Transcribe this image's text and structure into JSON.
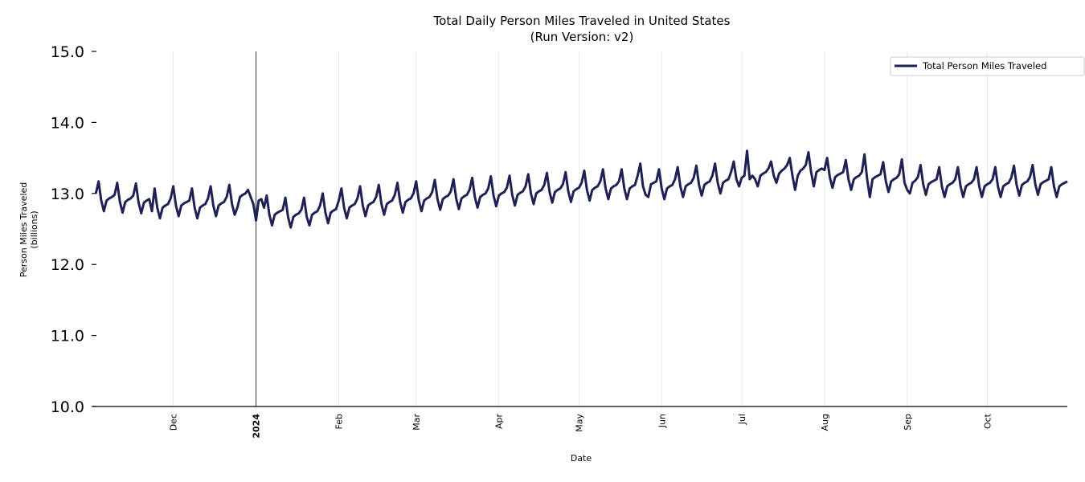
{
  "chart_data": {
    "type": "line",
    "title": "Total Daily Person Miles Traveled in United States",
    "subtitle": "(Run Version: v2)",
    "xlabel": "Date",
    "ylabel": "Person Miles Traveled",
    "ylabel_unit": "(billions)",
    "ylim": [
      10.0,
      15.0
    ],
    "yticks": [
      "10.0",
      "11.0",
      "12.0",
      "13.0",
      "14.0",
      "15.0"
    ],
    "xlim": [
      "2023-11-01",
      "2024-10-31"
    ],
    "xticks": [
      {
        "date": "2023-12-01",
        "label": "Dec",
        "bold": false
      },
      {
        "date": "2024-01-01",
        "label": "2024",
        "bold": true
      },
      {
        "date": "2024-02-01",
        "label": "Feb",
        "bold": false
      },
      {
        "date": "2024-03-01",
        "label": "Mar",
        "bold": false
      },
      {
        "date": "2024-04-01",
        "label": "Apr",
        "bold": false
      },
      {
        "date": "2024-05-01",
        "label": "May",
        "bold": false
      },
      {
        "date": "2024-06-01",
        "label": "Jun",
        "bold": false
      },
      {
        "date": "2024-07-01",
        "label": "Jul",
        "bold": false
      },
      {
        "date": "2024-08-01",
        "label": "Aug",
        "bold": false
      },
      {
        "date": "2024-09-01",
        "label": "Sep",
        "bold": false
      },
      {
        "date": "2024-10-01",
        "label": "Oct",
        "bold": false
      }
    ],
    "grid": "vertical at month starts",
    "highlight_line": "2024-01-01",
    "legend": {
      "position": "top-right"
    },
    "series": [
      {
        "name": "Total Person Miles Traveled",
        "color": "#1f2155",
        "x_start": "2023-11-02",
        "x_frequency": "daily",
        "values": [
          13.0,
          13.17,
          12.9,
          12.75,
          12.9,
          12.93,
          12.95,
          12.98,
          13.15,
          12.88,
          12.73,
          12.88,
          12.91,
          12.93,
          12.97,
          13.14,
          12.87,
          12.72,
          12.87,
          12.9,
          12.92,
          12.75,
          13.07,
          12.8,
          12.65,
          12.8,
          12.83,
          12.85,
          12.93,
          13.1,
          12.83,
          12.68,
          12.83,
          12.86,
          12.88,
          12.9,
          13.07,
          12.8,
          12.65,
          12.8,
          12.83,
          12.85,
          12.93,
          13.1,
          12.83,
          12.68,
          12.83,
          12.86,
          12.88,
          12.95,
          13.12,
          12.85,
          12.7,
          12.8,
          12.95,
          12.98,
          13.0,
          13.05,
          12.95,
          12.85,
          12.62,
          12.9,
          12.92,
          12.8,
          12.97,
          12.7,
          12.55,
          12.7,
          12.73,
          12.75,
          12.77,
          12.94,
          12.67,
          12.52,
          12.67,
          12.7,
          12.72,
          12.77,
          12.94,
          12.67,
          12.55,
          12.7,
          12.73,
          12.75,
          12.83,
          13.0,
          12.73,
          12.58,
          12.73,
          12.76,
          12.78,
          12.9,
          13.07,
          12.8,
          12.65,
          12.8,
          12.83,
          12.85,
          12.93,
          13.1,
          12.83,
          12.68,
          12.83,
          12.86,
          12.88,
          12.95,
          13.12,
          12.85,
          12.7,
          12.85,
          12.88,
          12.9,
          12.98,
          13.15,
          12.88,
          12.73,
          12.88,
          12.91,
          12.93,
          13.0,
          13.17,
          12.9,
          12.75,
          12.9,
          12.93,
          12.95,
          13.02,
          13.19,
          12.92,
          12.77,
          12.92,
          12.95,
          12.97,
          13.03,
          13.2,
          12.93,
          12.78,
          12.93,
          12.96,
          12.98,
          13.05,
          13.22,
          12.95,
          12.8,
          12.95,
          12.98,
          13.0,
          13.07,
          13.24,
          12.97,
          12.82,
          12.97,
          13.0,
          13.02,
          13.08,
          13.25,
          12.98,
          12.83,
          12.98,
          13.01,
          13.03,
          13.1,
          13.27,
          13.0,
          12.85,
          13.0,
          13.03,
          13.05,
          13.12,
          13.29,
          13.02,
          12.87,
          13.02,
          13.05,
          13.07,
          13.13,
          13.3,
          13.03,
          12.88,
          13.03,
          13.06,
          13.08,
          13.15,
          13.32,
          13.05,
          12.9,
          13.05,
          13.08,
          13.1,
          13.17,
          13.34,
          13.07,
          12.92,
          13.07,
          13.1,
          13.12,
          13.17,
          13.34,
          13.07,
          12.92,
          13.07,
          13.1,
          13.12,
          13.25,
          13.42,
          13.1,
          12.98,
          12.95,
          13.13,
          13.15,
          13.17,
          13.34,
          13.07,
          12.92,
          13.07,
          13.1,
          13.12,
          13.2,
          13.37,
          13.1,
          12.95,
          13.1,
          13.13,
          13.15,
          13.22,
          13.39,
          13.12,
          12.97,
          13.12,
          13.15,
          13.17,
          13.25,
          13.42,
          13.15,
          13.0,
          13.15,
          13.18,
          13.2,
          13.3,
          13.45,
          13.2,
          13.1,
          13.22,
          13.25,
          13.6,
          13.2,
          13.25,
          13.2,
          13.1,
          13.25,
          13.28,
          13.3,
          13.35,
          13.45,
          13.25,
          13.15,
          13.28,
          13.32,
          13.35,
          13.4,
          13.5,
          13.25,
          13.05,
          13.25,
          13.32,
          13.35,
          13.4,
          13.58,
          13.3,
          13.1,
          13.3,
          13.33,
          13.35,
          13.33,
          13.5,
          13.23,
          13.08,
          13.23,
          13.26,
          13.28,
          13.3,
          13.47,
          13.2,
          13.05,
          13.2,
          13.23,
          13.25,
          13.3,
          13.55,
          13.2,
          12.95,
          13.2,
          13.23,
          13.25,
          13.27,
          13.44,
          13.17,
          13.02,
          13.17,
          13.2,
          13.22,
          13.27,
          13.48,
          13.15,
          13.05,
          13.0,
          13.15,
          13.18,
          13.23,
          13.4,
          13.13,
          12.98,
          13.13,
          13.16,
          13.18,
          13.2,
          13.37,
          13.1,
          12.95,
          13.1,
          13.13,
          13.15,
          13.2,
          13.37,
          13.1,
          12.95,
          13.1,
          13.13,
          13.15,
          13.2,
          13.37,
          13.1,
          12.95,
          13.1,
          13.13,
          13.15,
          13.2,
          13.37,
          13.1,
          12.95,
          13.1,
          13.13,
          13.15,
          13.22,
          13.39,
          13.12,
          12.97,
          13.12,
          13.15,
          13.17,
          13.23,
          13.4,
          13.13,
          12.98,
          13.13,
          13.16,
          13.18,
          13.2,
          13.37,
          13.1,
          12.95,
          13.1,
          13.13,
          13.15,
          13.17
        ]
      }
    ]
  }
}
